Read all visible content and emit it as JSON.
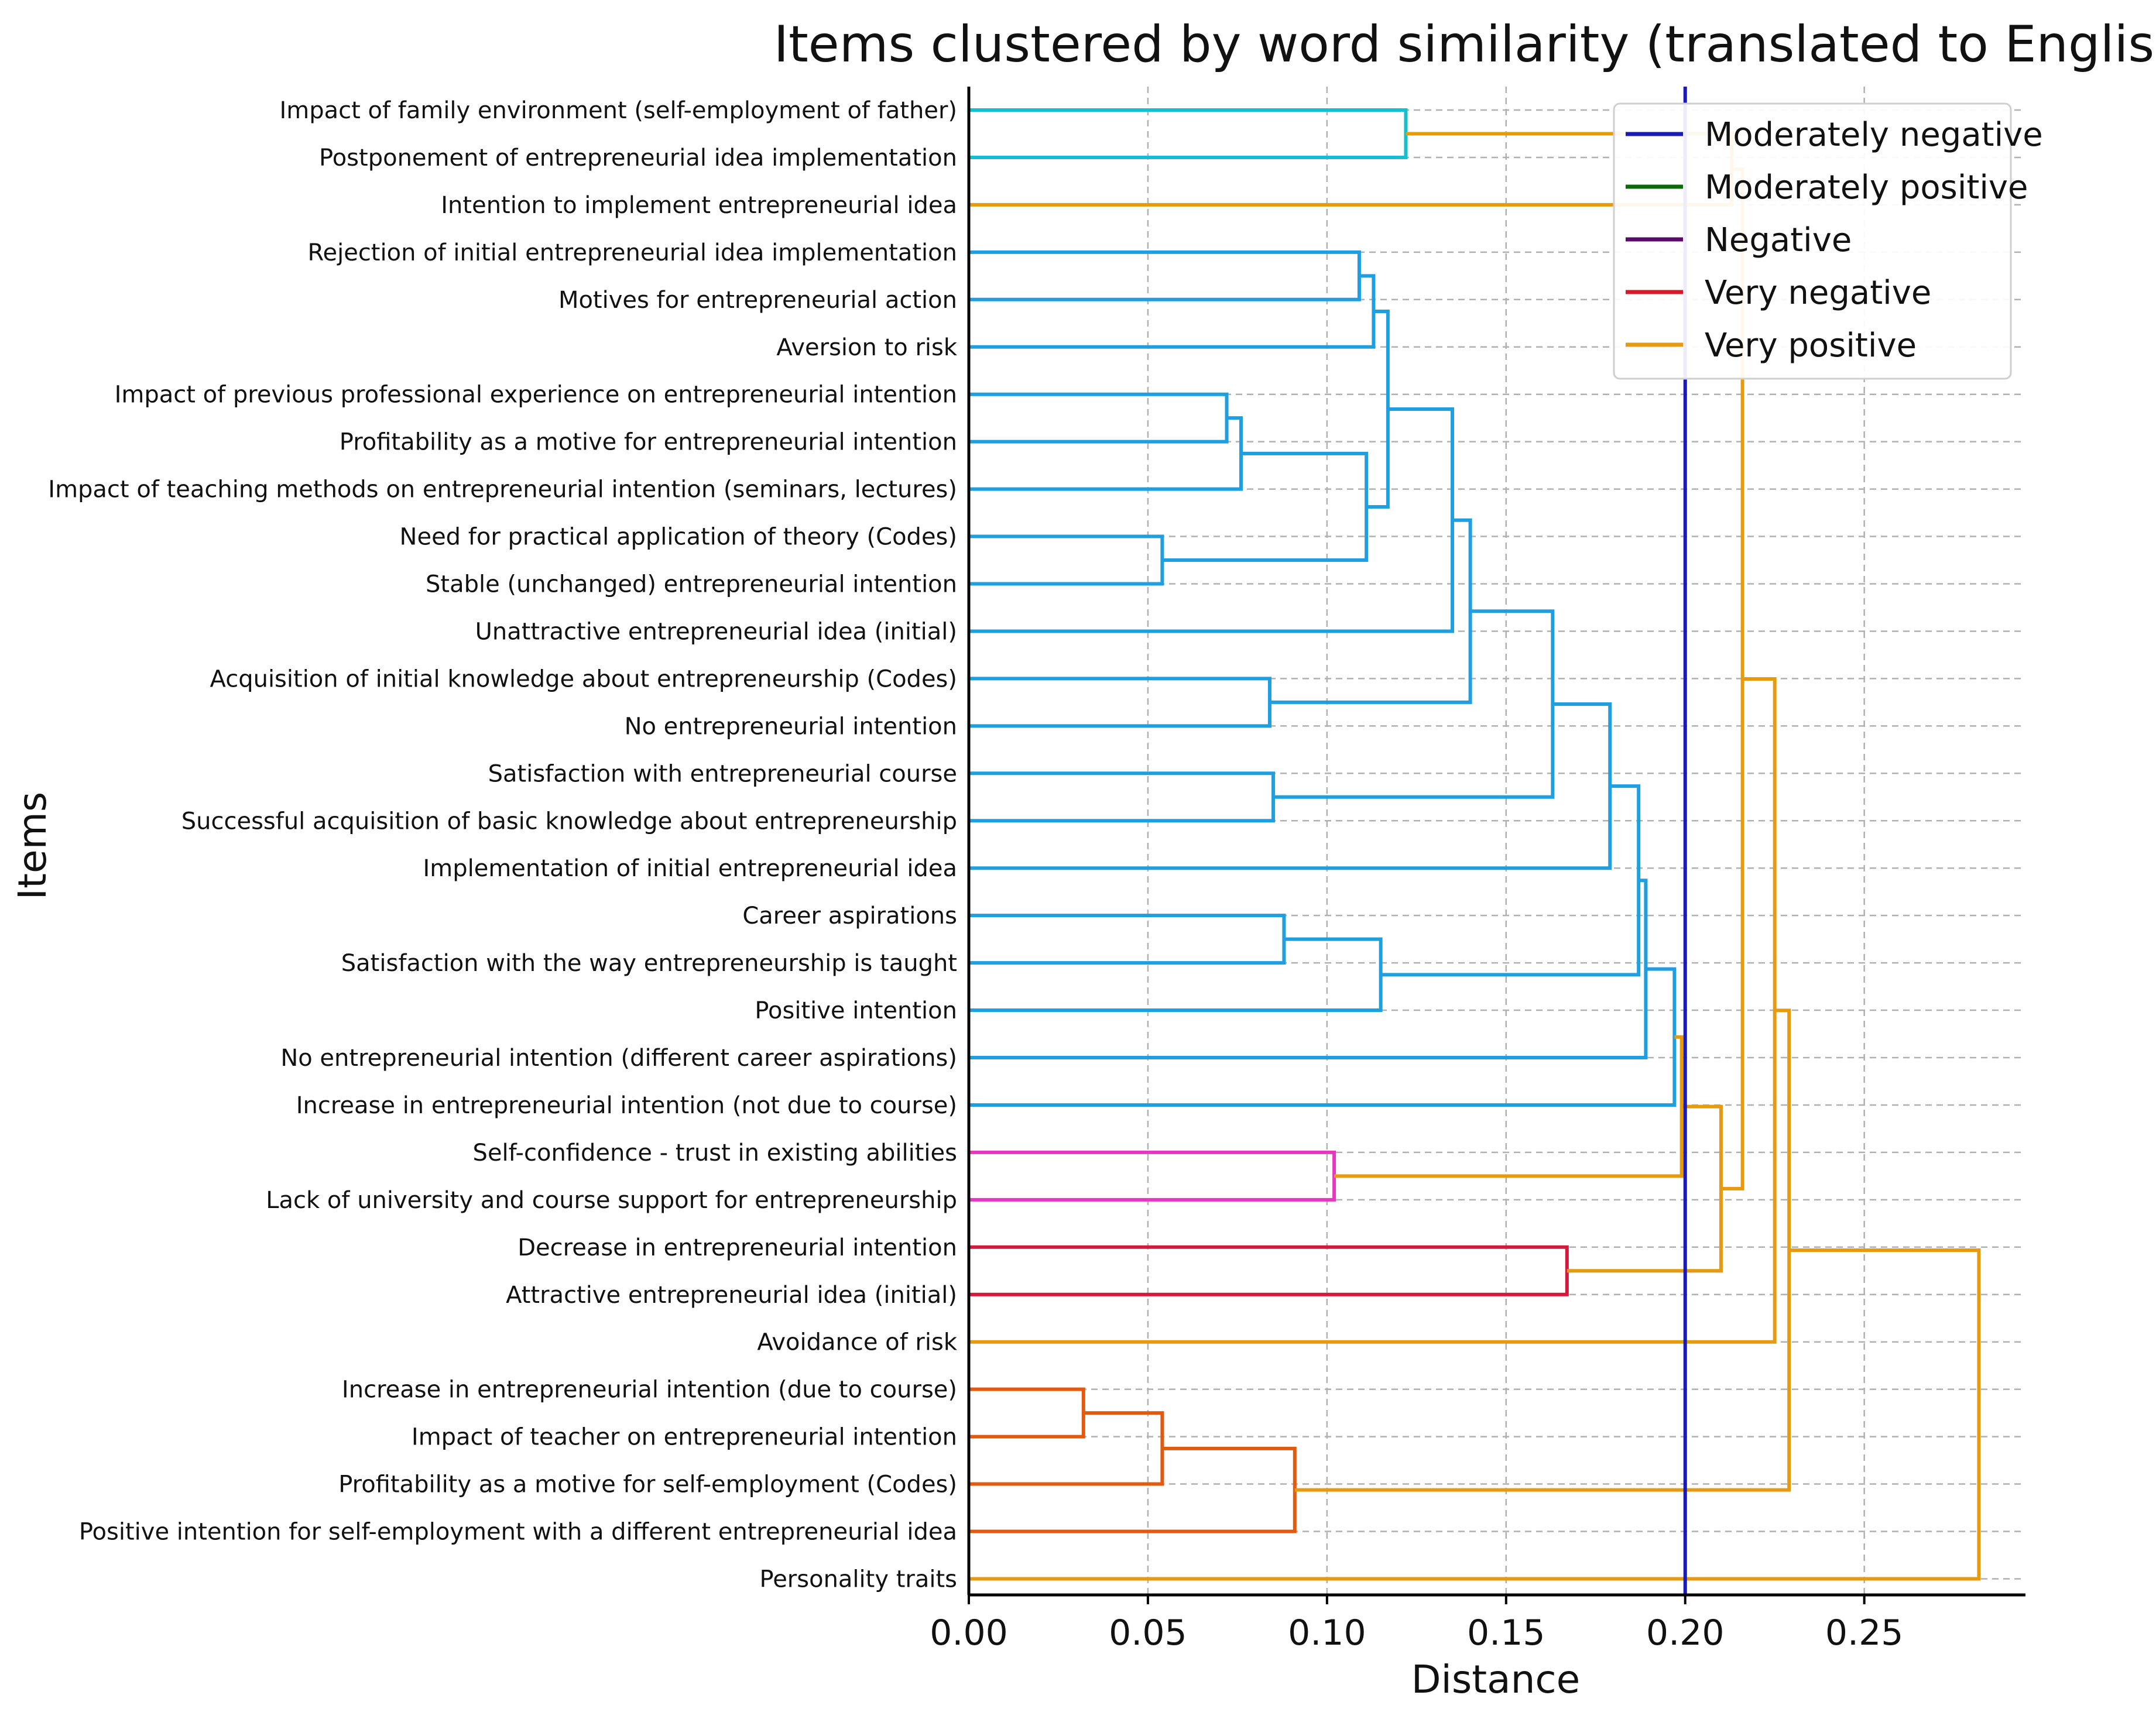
{
  "chart_data": {
    "type": "dendrogram",
    "title": "Items clustered by word similarity (translated to English)",
    "xlabel": "Distance",
    "ylabel": "Items",
    "xlim": [
      0,
      0.295
    ],
    "xticks": [
      0.0,
      0.05,
      0.1,
      0.15,
      0.2,
      0.25
    ],
    "xtick_labels": [
      "0.00",
      "0.05",
      "0.10",
      "0.15",
      "0.20",
      "0.25"
    ],
    "grid": true,
    "threshold": {
      "value": 0.2,
      "color": "#1a1ab5"
    },
    "colors": {
      "teal": "#17becf",
      "blue": "#1f9fe0",
      "pink": "#e637bf",
      "red": "#d11a3c",
      "orange": "#e25a10",
      "gold": "#e69a10"
    },
    "leaves": [
      "Impact of family environment (self-employment of father)",
      "Postponement of entrepreneurial idea implementation",
      "Intention to implement entrepreneurial idea",
      "Rejection of initial entrepreneurial idea implementation",
      "Motives for entrepreneurial action",
      "Aversion to risk",
      "Impact of previous professional experience on entrepreneurial intention",
      "Profitability as a motive for entrepreneurial intention",
      "Impact of teaching methods on entrepreneurial intention (seminars, lectures)",
      "Need for practical application of theory (Codes)",
      "Stable (unchanged) entrepreneurial intention",
      "Unattractive entrepreneurial idea (initial)",
      "Acquisition of initial knowledge about entrepreneurship (Codes)",
      "No entrepreneurial intention",
      "Satisfaction with entrepreneurial course",
      "Successful acquisition of basic knowledge about entrepreneurship",
      "Implementation of initial entrepreneurial idea",
      "Career aspirations",
      "Satisfaction with the way entrepreneurship is taught",
      "Positive intention",
      "No entrepreneurial intention (different career aspirations)",
      "Increase in entrepreneurial intention (not due to course)",
      "Self-confidence - trust in existing abilities",
      "Lack of university and course support for entrepreneurship",
      "Decrease in entrepreneurial intention",
      "Attractive entrepreneurial idea (initial)",
      "Avoidance of risk",
      "Increase in entrepreneurial intention (due to course)",
      "Impact of teacher on entrepreneurial intention",
      "Profitability as a motive for self-employment (Codes)",
      "Positive intention for self-employment with a different entrepreneurial idea",
      "Personality traits"
    ],
    "merges": [
      {
        "id": "m1",
        "a": "L0",
        "b": "L1",
        "height": 0.122,
        "color": "teal"
      },
      {
        "id": "m2",
        "a": "L3",
        "b": "L4",
        "height": 0.109,
        "color": "blue"
      },
      {
        "id": "m3",
        "a": "m2",
        "b": "L5",
        "height": 0.113,
        "color": "blue"
      },
      {
        "id": "m4",
        "a": "L6",
        "b": "L7",
        "height": 0.072,
        "color": "blue"
      },
      {
        "id": "m5",
        "a": "m4",
        "b": "L8",
        "height": 0.076,
        "color": "blue"
      },
      {
        "id": "m6",
        "a": "L9",
        "b": "L10",
        "height": 0.054,
        "color": "blue"
      },
      {
        "id": "m7",
        "a": "m5",
        "b": "m6",
        "height": 0.111,
        "color": "blue"
      },
      {
        "id": "m8",
        "a": "m3",
        "b": "m7",
        "height": 0.117,
        "color": "blue"
      },
      {
        "id": "m9",
        "a": "m8",
        "b": "L11",
        "height": 0.135,
        "color": "blue"
      },
      {
        "id": "m10",
        "a": "L12",
        "b": "L13",
        "height": 0.084,
        "color": "blue"
      },
      {
        "id": "m11",
        "a": "m9",
        "b": "m10",
        "height": 0.14,
        "color": "blue"
      },
      {
        "id": "m12",
        "a": "L14",
        "b": "L15",
        "height": 0.085,
        "color": "blue"
      },
      {
        "id": "m13",
        "a": "m11",
        "b": "m12",
        "height": 0.163,
        "color": "blue"
      },
      {
        "id": "m14",
        "a": "m13",
        "b": "L16",
        "height": 0.179,
        "color": "blue"
      },
      {
        "id": "m15",
        "a": "L17",
        "b": "L18",
        "height": 0.088,
        "color": "blue"
      },
      {
        "id": "m16",
        "a": "m15",
        "b": "L19",
        "height": 0.115,
        "color": "blue"
      },
      {
        "id": "m17",
        "a": "m14",
        "b": "m16",
        "height": 0.187,
        "color": "blue"
      },
      {
        "id": "m18",
        "a": "m17",
        "b": "L20",
        "height": 0.189,
        "color": "blue"
      },
      {
        "id": "m19",
        "a": "m18",
        "b": "L21",
        "height": 0.197,
        "color": "blue"
      },
      {
        "id": "m20",
        "a": "L22",
        "b": "L23",
        "height": 0.102,
        "color": "pink"
      },
      {
        "id": "m21",
        "a": "m19",
        "b": "m20",
        "height": 0.199,
        "color": "gold"
      },
      {
        "id": "m22",
        "a": "L24",
        "b": "L25",
        "height": 0.167,
        "color": "red"
      },
      {
        "id": "m23",
        "a": "m21",
        "b": "m22",
        "height": 0.21,
        "color": "gold"
      },
      {
        "id": "m24",
        "a": "m1",
        "b": "L2",
        "height": 0.213,
        "color": "gold"
      },
      {
        "id": "m25",
        "a": "m24",
        "b": "m23",
        "height": 0.216,
        "color": "gold"
      },
      {
        "id": "m26",
        "a": "m25",
        "b": "L26",
        "height": 0.225,
        "color": "gold"
      },
      {
        "id": "m27",
        "a": "L27",
        "b": "L28",
        "height": 0.032,
        "color": "orange"
      },
      {
        "id": "m28",
        "a": "m27",
        "b": "L29",
        "height": 0.054,
        "color": "orange"
      },
      {
        "id": "m29",
        "a": "m28",
        "b": "L30",
        "height": 0.091,
        "color": "orange"
      },
      {
        "id": "m30",
        "a": "m26",
        "b": "m29",
        "height": 0.229,
        "color": "gold"
      },
      {
        "id": "m31",
        "a": "m30",
        "b": "L31",
        "height": 0.282,
        "color": "gold"
      }
    ],
    "legend": {
      "position": "top-right",
      "entries": [
        {
          "label": "Moderately negative",
          "color": "#1a1ab5"
        },
        {
          "label": "Moderately positive",
          "color": "#0a6b0a"
        },
        {
          "label": "Negative",
          "color": "#5a0a6b"
        },
        {
          "label": "Very negative",
          "color": "#d11a2a"
        },
        {
          "label": "Very positive",
          "color": "#e69a10"
        }
      ]
    }
  }
}
